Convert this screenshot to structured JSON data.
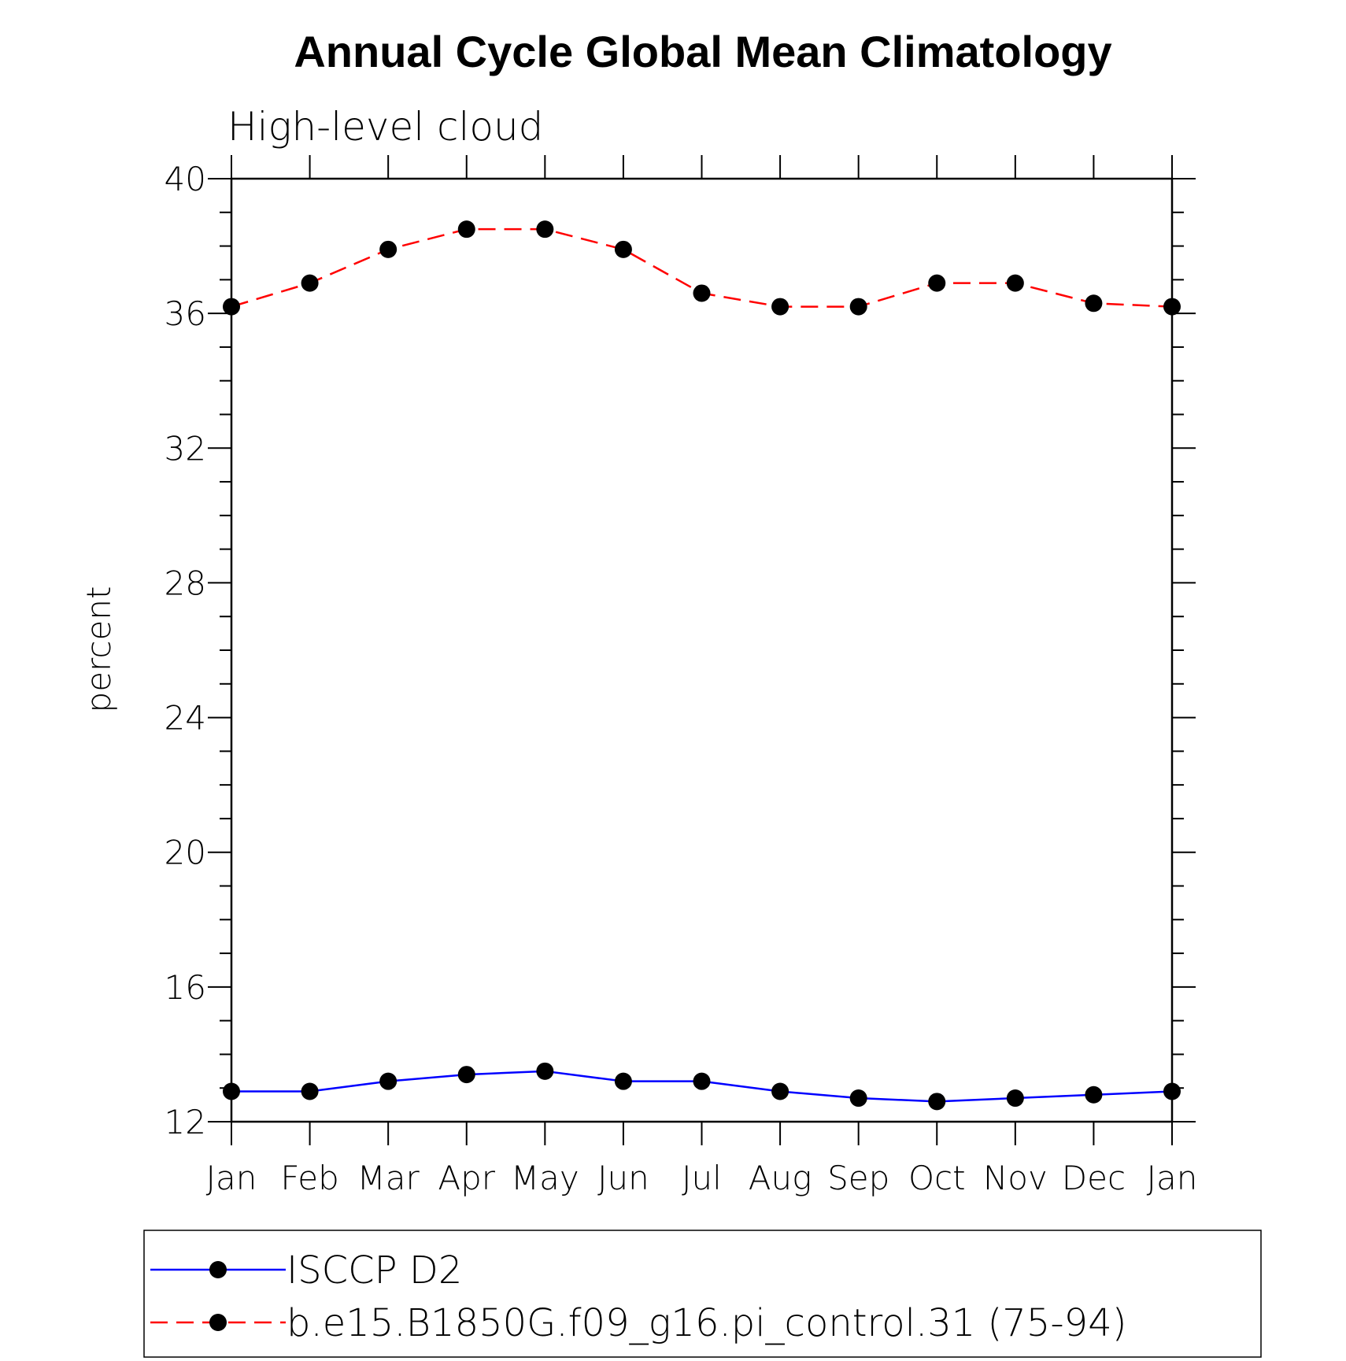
{
  "chart_data": {
    "type": "line",
    "title": "Annual Cycle Global Mean Climatology",
    "subtitle": "High-level cloud",
    "ylabel": "percent",
    "xlabel": "",
    "categories": [
      "Jan",
      "Feb",
      "Mar",
      "Apr",
      "May",
      "Jun",
      "Jul",
      "Aug",
      "Sep",
      "Oct",
      "Nov",
      "Dec",
      "Jan"
    ],
    "ylim": [
      12,
      40
    ],
    "yticks": [
      12,
      16,
      20,
      24,
      28,
      32,
      36,
      40
    ],
    "grid": false,
    "legend_position": "bottom",
    "series": [
      {
        "name": "ISCCP D2",
        "color": "#0000ff",
        "dash": "solid",
        "marker": "filled-circle",
        "values": [
          12.9,
          12.9,
          13.2,
          13.4,
          13.5,
          13.2,
          13.2,
          12.9,
          12.7,
          12.6,
          12.7,
          12.8,
          12.9
        ]
      },
      {
        "name": "b.e15.B1850G.f09_g16.pi_control.31 (75-94)",
        "color": "#ff0000",
        "dash": "dashed",
        "marker": "filled-circle",
        "values": [
          36.2,
          36.9,
          37.9,
          38.5,
          38.5,
          37.9,
          36.6,
          36.2,
          36.2,
          36.9,
          36.9,
          36.3,
          36.2
        ]
      }
    ]
  }
}
